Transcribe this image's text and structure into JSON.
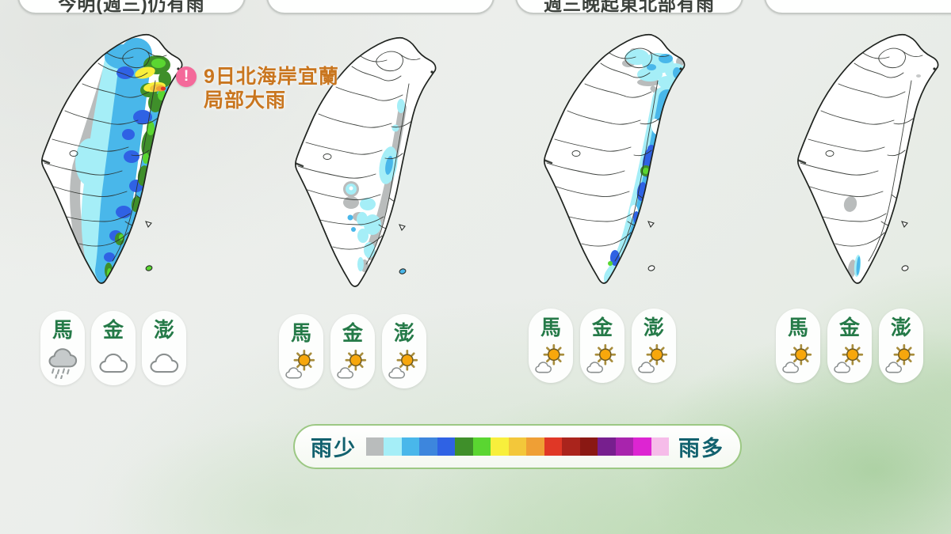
{
  "header": {
    "pills": [
      {
        "label": "今明(週三)仍有雨"
      },
      {
        "label": ""
      },
      {
        "label": "週三晚起東北部有雨"
      },
      {
        "label": ""
      }
    ]
  },
  "annotation": {
    "icon": "exclamation-icon",
    "line1": "9日北海岸宜蘭",
    "line2": "局部大雨"
  },
  "maps": [
    {
      "rain_pattern": "heavy rain north and east: blue/green areas with yellow-orange-red cores near north coast and Yilan, gray-cyan band inland west",
      "islands": [
        {
          "label": "馬",
          "icon": "rain-cloud"
        },
        {
          "label": "金",
          "icon": "cloud"
        },
        {
          "label": "澎",
          "icon": "cloud"
        }
      ]
    },
    {
      "rain_pattern": "mostly dry: gray band along central mountains with scattered light-cyan patches",
      "islands": [
        {
          "label": "馬",
          "icon": "sun-cloud"
        },
        {
          "label": "金",
          "icon": "sun-cloud"
        },
        {
          "label": "澎",
          "icon": "sun-cloud"
        }
      ]
    },
    {
      "rain_pattern": "rain band along east coast and north tip: cyan/sky-blue with small blue and green cores",
      "islands": [
        {
          "label": "馬",
          "icon": "sun-cloud"
        },
        {
          "label": "金",
          "icon": "sun-cloud"
        },
        {
          "label": "澎",
          "icon": "sun-cloud"
        }
      ]
    },
    {
      "rain_pattern": "almost no rain: small gray patch in south, thin cyan sliver at southern tip",
      "islands": [
        {
          "label": "馬",
          "icon": "sun-cloud"
        },
        {
          "label": "金",
          "icon": "sun-cloud"
        },
        {
          "label": "澎",
          "icon": "sun-cloud"
        }
      ]
    }
  ],
  "legend": {
    "less_label": "雨少",
    "more_label": "雨多",
    "colors": [
      "#b9bcbc",
      "#a5eef7",
      "#49b7ea",
      "#3d86dd",
      "#2f62e4",
      "#3f8f2a",
      "#5ad631",
      "#f8ef3c",
      "#f3c73a",
      "#ef9f35",
      "#e03726",
      "#aa241c",
      "#8a1813",
      "#771f8e",
      "#a824ad",
      "#dd25d2",
      "#f6bce9"
    ]
  },
  "colors": {
    "annotation_text": "#c9761f",
    "annotation_icon": "#f4699a",
    "island_label": "#257a48",
    "legend_label": "#11616e"
  }
}
